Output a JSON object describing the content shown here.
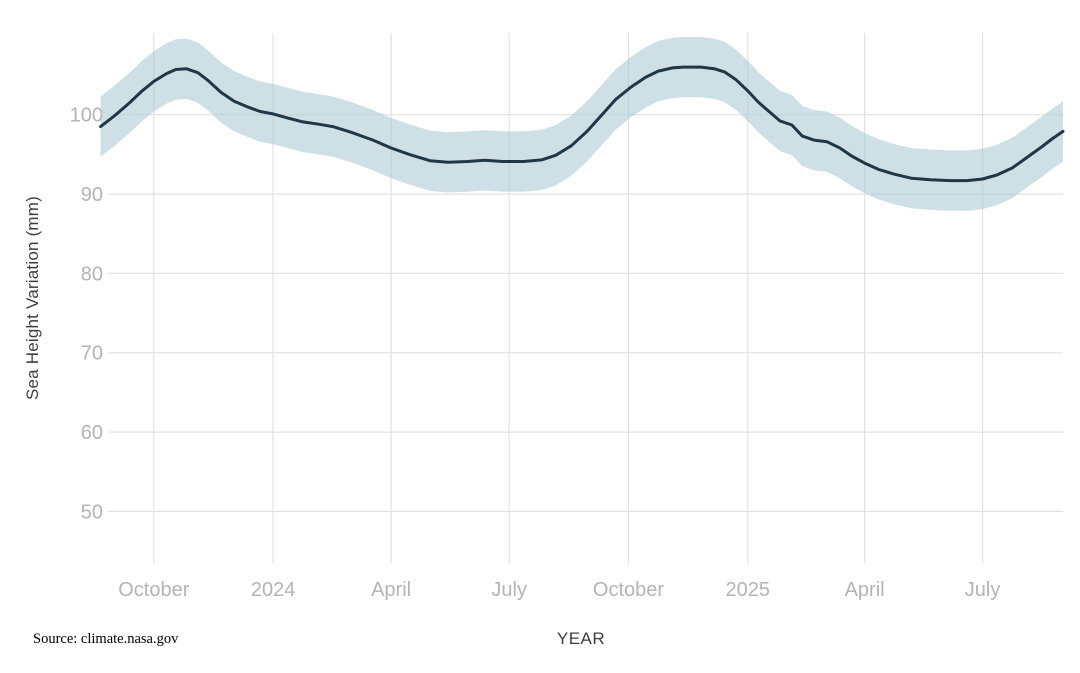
{
  "source_note": "Source: climate.nasa.gov",
  "chart_data": {
    "type": "line",
    "title": "",
    "xlabel": "YEAR",
    "ylabel": "Sea Height Variation (mm)",
    "grid": true,
    "legend_position": "none",
    "ylim": [
      43.5,
      110.3
    ],
    "y_ticks": [
      50,
      60,
      70,
      80,
      90,
      100
    ],
    "x_domain": [
      "2023-08-19",
      "2025-09-01"
    ],
    "x_ticks": [
      {
        "date": "2023-10-01",
        "label": "October"
      },
      {
        "date": "2024-01-01",
        "label": "2024"
      },
      {
        "date": "2024-04-01",
        "label": "April"
      },
      {
        "date": "2024-07-01",
        "label": "July"
      },
      {
        "date": "2024-10-01",
        "label": "October"
      },
      {
        "date": "2025-01-01",
        "label": "2025"
      },
      {
        "date": "2025-04-01",
        "label": "April"
      },
      {
        "date": "2025-07-01",
        "label": "July"
      }
    ],
    "uncertainty_mm": 3.8,
    "colors": {
      "line": "#1f3746",
      "band": "#aecbd4",
      "band_opacity": 0.6,
      "grid": "#e2e2e2",
      "tick_label": "#b4b4b4",
      "axis_title": "#3d3d3d"
    },
    "series": [
      {
        "name": "Sea Height Variation",
        "points": [
          {
            "date": "2023-08-21",
            "value": 98.5
          },
          {
            "date": "2023-09-01",
            "value": 99.9
          },
          {
            "date": "2023-09-13",
            "value": 101.6
          },
          {
            "date": "2023-09-22",
            "value": 103.0
          },
          {
            "date": "2023-10-01",
            "value": 104.2
          },
          {
            "date": "2023-10-11",
            "value": 105.2
          },
          {
            "date": "2023-10-18",
            "value": 105.7
          },
          {
            "date": "2023-10-26",
            "value": 105.8
          },
          {
            "date": "2023-11-04",
            "value": 105.3
          },
          {
            "date": "2023-11-12",
            "value": 104.3
          },
          {
            "date": "2023-11-22",
            "value": 102.8
          },
          {
            "date": "2023-12-02",
            "value": 101.7
          },
          {
            "date": "2023-12-12",
            "value": 101.0
          },
          {
            "date": "2023-12-22",
            "value": 100.4
          },
          {
            "date": "2024-01-01",
            "value": 100.1
          },
          {
            "date": "2024-01-12",
            "value": 99.6
          },
          {
            "date": "2024-01-24",
            "value": 99.1
          },
          {
            "date": "2024-02-05",
            "value": 98.8
          },
          {
            "date": "2024-02-16",
            "value": 98.5
          },
          {
            "date": "2024-03-01",
            "value": 97.8
          },
          {
            "date": "2024-03-18",
            "value": 96.8
          },
          {
            "date": "2024-04-01",
            "value": 95.8
          },
          {
            "date": "2024-04-15",
            "value": 95.0
          },
          {
            "date": "2024-05-01",
            "value": 94.2
          },
          {
            "date": "2024-05-15",
            "value": 94.0
          },
          {
            "date": "2024-05-30",
            "value": 94.1
          },
          {
            "date": "2024-06-12",
            "value": 94.25
          },
          {
            "date": "2024-06-26",
            "value": 94.1
          },
          {
            "date": "2024-07-12",
            "value": 94.1
          },
          {
            "date": "2024-07-26",
            "value": 94.3
          },
          {
            "date": "2024-08-06",
            "value": 94.9
          },
          {
            "date": "2024-08-18",
            "value": 96.1
          },
          {
            "date": "2024-08-30",
            "value": 97.9
          },
          {
            "date": "2024-09-10",
            "value": 99.9
          },
          {
            "date": "2024-09-21",
            "value": 101.9
          },
          {
            "date": "2024-10-03",
            "value": 103.5
          },
          {
            "date": "2024-10-14",
            "value": 104.7
          },
          {
            "date": "2024-10-24",
            "value": 105.5
          },
          {
            "date": "2024-11-04",
            "value": 105.9
          },
          {
            "date": "2024-11-12",
            "value": 106.0
          },
          {
            "date": "2024-11-26",
            "value": 106.0
          },
          {
            "date": "2024-12-06",
            "value": 105.8
          },
          {
            "date": "2024-12-14",
            "value": 105.4
          },
          {
            "date": "2024-12-23",
            "value": 104.4
          },
          {
            "date": "2025-01-01",
            "value": 103.0
          },
          {
            "date": "2025-01-09",
            "value": 101.6
          },
          {
            "date": "2025-01-18",
            "value": 100.3
          },
          {
            "date": "2025-01-26",
            "value": 99.2
          },
          {
            "date": "2025-02-04",
            "value": 98.7
          },
          {
            "date": "2025-02-12",
            "value": 97.3
          },
          {
            "date": "2025-02-21",
            "value": 96.8
          },
          {
            "date": "2025-03-03",
            "value": 96.6
          },
          {
            "date": "2025-03-13",
            "value": 95.8
          },
          {
            "date": "2025-03-22",
            "value": 94.8
          },
          {
            "date": "2025-04-01",
            "value": 93.9
          },
          {
            "date": "2025-04-12",
            "value": 93.1
          },
          {
            "date": "2025-04-24",
            "value": 92.5
          },
          {
            "date": "2025-05-07",
            "value": 92.0
          },
          {
            "date": "2025-05-22",
            "value": 91.8
          },
          {
            "date": "2025-06-06",
            "value": 91.7
          },
          {
            "date": "2025-06-19",
            "value": 91.7
          },
          {
            "date": "2025-07-01",
            "value": 91.9
          },
          {
            "date": "2025-07-12",
            "value": 92.4
          },
          {
            "date": "2025-07-24",
            "value": 93.3
          },
          {
            "date": "2025-08-04",
            "value": 94.6
          },
          {
            "date": "2025-08-16",
            "value": 96.0
          },
          {
            "date": "2025-08-24",
            "value": 97.0
          },
          {
            "date": "2025-09-01",
            "value": 97.9
          }
        ]
      }
    ]
  }
}
